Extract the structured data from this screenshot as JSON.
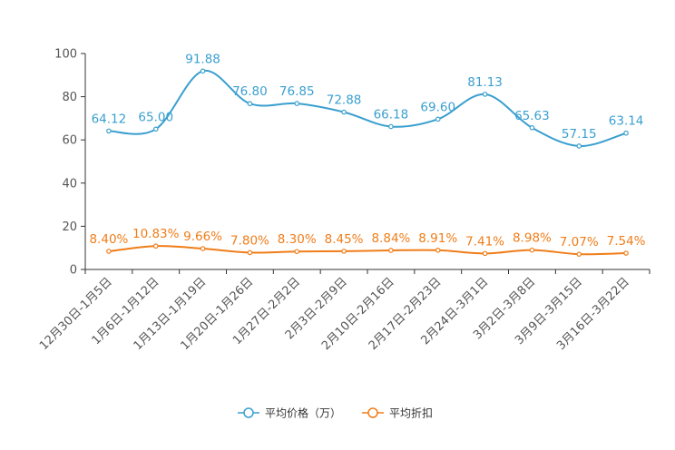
{
  "chart_data": {
    "type": "line",
    "title": "",
    "xlabel": "",
    "ylabel": "",
    "ylim": [
      0,
      100
    ],
    "yticks": [
      0,
      20,
      40,
      60,
      80,
      100
    ],
    "grid": false,
    "legend_position": "bottom-center",
    "categories": [
      "12月30日-1月5日",
      "1月6日-1月12日",
      "1月13日-1月19日",
      "1月20日-1月26日",
      "1月27日-2月2日",
      "2月3日-2月9日",
      "2月10日-2月16日",
      "2月17日-2月23日",
      "2月24日-3月1日",
      "3月2日-3月8日",
      "3月9日-3月15日",
      "3月16日-3月22日"
    ],
    "series": [
      {
        "name": "平均价格（万）",
        "color": "#3a9fcf",
        "values": [
          64.12,
          65.0,
          91.88,
          76.8,
          76.85,
          72.88,
          66.18,
          69.6,
          81.13,
          65.63,
          57.15,
          63.14
        ],
        "labels": [
          "64.12",
          "65.00",
          "91.88",
          "76.80",
          "76.85",
          "72.88",
          "66.18",
          "69.60",
          "81.13",
          "65.63",
          "57.15",
          "63.14"
        ]
      },
      {
        "name": "平均折扣",
        "color": "#f07d19",
        "values": [
          8.4,
          10.83,
          9.66,
          7.8,
          8.3,
          8.45,
          8.84,
          8.91,
          7.41,
          8.98,
          7.07,
          7.54
        ],
        "labels": [
          "8.40%",
          "10.83%",
          "9.66%",
          "7.80%",
          "8.30%",
          "8.45%",
          "8.84%",
          "8.91%",
          "7.41%",
          "8.98%",
          "7.07%",
          "7.54%"
        ]
      }
    ]
  }
}
